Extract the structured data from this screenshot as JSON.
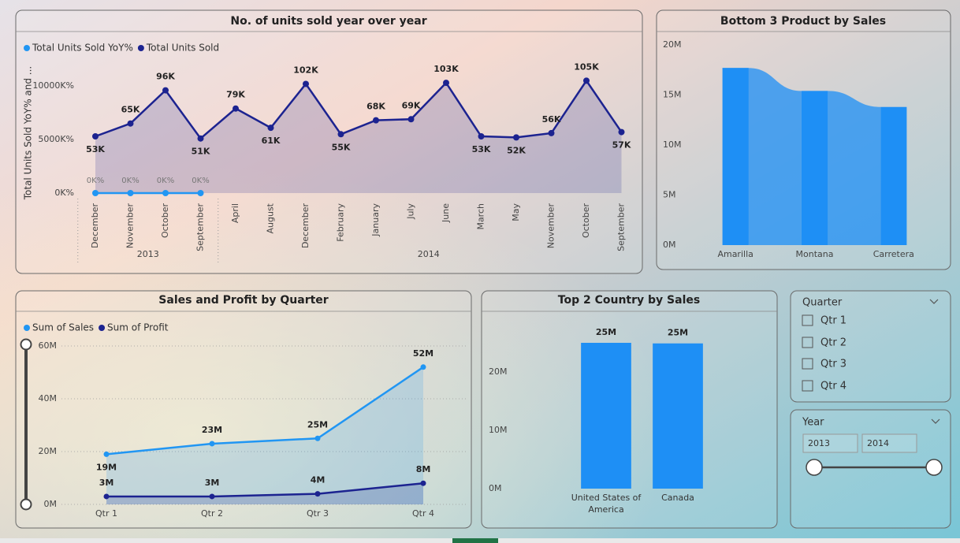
{
  "chart_data": [
    {
      "type": "line",
      "title": "No. of units sold year over year",
      "y_label": "Total Units Sold YoY% and ...",
      "categories": [
        "December",
        "November",
        "October",
        "September",
        "April",
        "August",
        "December",
        "February",
        "January",
        "July",
        "June",
        "March",
        "May",
        "November",
        "October",
        "September"
      ],
      "year": [
        "2013",
        "2013",
        "2013",
        "2013",
        "2014",
        "2014",
        "2014",
        "2014",
        "2014",
        "2014",
        "2014",
        "2014",
        "2014",
        "2014",
        "2014",
        "2014"
      ],
      "series": [
        {
          "name": "Total Units Sold YoY%",
          "color": "#2196f3",
          "values": [
            0,
            0,
            0,
            0,
            null,
            null,
            null,
            null,
            null,
            null,
            null,
            null,
            null,
            null,
            null,
            null
          ],
          "value_labels": [
            "0K%",
            "0K%",
            "0K%",
            "0K%",
            null,
            null,
            null,
            null,
            null,
            null,
            null,
            null,
            null,
            null,
            null,
            null
          ]
        },
        {
          "name": "Total Units Sold",
          "color": "#1c2390",
          "values": [
            53000,
            65000,
            96000,
            51000,
            79000,
            61000,
            102000,
            55000,
            68000,
            69000,
            103000,
            53000,
            52000,
            56000,
            105000,
            57000
          ],
          "value_labels": [
            "53K",
            "65K",
            "96K",
            "51K",
            "79K",
            "61K",
            "102K",
            "55K",
            "68K",
            "69K",
            "103K",
            "53K",
            "52K",
            "56K",
            "105K",
            "57K"
          ]
        }
      ],
      "ylim": [
        0,
        120000
      ],
      "yticks": [
        {
          "value": 0,
          "label": "0K%"
        },
        {
          "value": 50000,
          "label": "5000K%"
        },
        {
          "value": 100000,
          "label": "10000K%"
        }
      ],
      "area": true,
      "grid": false
    },
    {
      "type": "bar",
      "title": "Bottom 3 Product by Sales",
      "categories": [
        "Amarilla",
        "Montana",
        "Carretera"
      ],
      "values": [
        17700000,
        15400000,
        13800000
      ],
      "color": "#1e8ff5",
      "ylim": [
        0,
        20000000
      ],
      "yticks": [
        {
          "value": 0,
          "label": "0M"
        },
        {
          "value": 5000000,
          "label": "5M"
        },
        {
          "value": 10000000,
          "label": "10M"
        },
        {
          "value": 15000000,
          "label": "15M"
        },
        {
          "value": 20000000,
          "label": "20M"
        }
      ],
      "ribbon": true,
      "grid": false
    },
    {
      "type": "line",
      "title": "Sales and Profit by Quarter",
      "categories": [
        "Qtr 1",
        "Qtr 2",
        "Qtr 3",
        "Qtr 4"
      ],
      "series": [
        {
          "name": "Sum of Sales",
          "color": "#2196f3",
          "values": [
            19000000,
            23000000,
            25000000,
            52000000
          ],
          "value_labels": [
            "19M",
            "23M",
            "25M",
            "52M"
          ]
        },
        {
          "name": "Sum of Profit",
          "color": "#1c2390",
          "values": [
            3000000,
            3000000,
            4000000,
            8000000
          ],
          "value_labels": [
            "3M",
            "3M",
            "4M",
            "8M"
          ]
        }
      ],
      "ylim": [
        0,
        60000000
      ],
      "yticks": [
        {
          "value": 0,
          "label": "0M"
        },
        {
          "value": 20000000,
          "label": "20M"
        },
        {
          "value": 40000000,
          "label": "40M"
        },
        {
          "value": 60000000,
          "label": "60M"
        }
      ],
      "area": true,
      "grid": true
    },
    {
      "type": "bar",
      "title": "Top 2 Country by Sales",
      "categories": [
        "United States of America",
        "Canada"
      ],
      "values": [
        25000000,
        24900000
      ],
      "value_labels": [
        "25M",
        "25M"
      ],
      "color": "#1e8ff5",
      "ylim": [
        0,
        28000000
      ],
      "yticks": [
        {
          "value": 0,
          "label": "0M"
        },
        {
          "value": 10000000,
          "label": "10M"
        },
        {
          "value": 20000000,
          "label": "20M"
        }
      ],
      "grid": false
    }
  ],
  "slicers": [
    {
      "title": "Quarter",
      "items": [
        "Qtr 1",
        "Qtr 2",
        "Qtr 3",
        "Qtr 4"
      ]
    },
    {
      "title": "Year",
      "range": [
        "2013",
        "2014"
      ]
    }
  ]
}
